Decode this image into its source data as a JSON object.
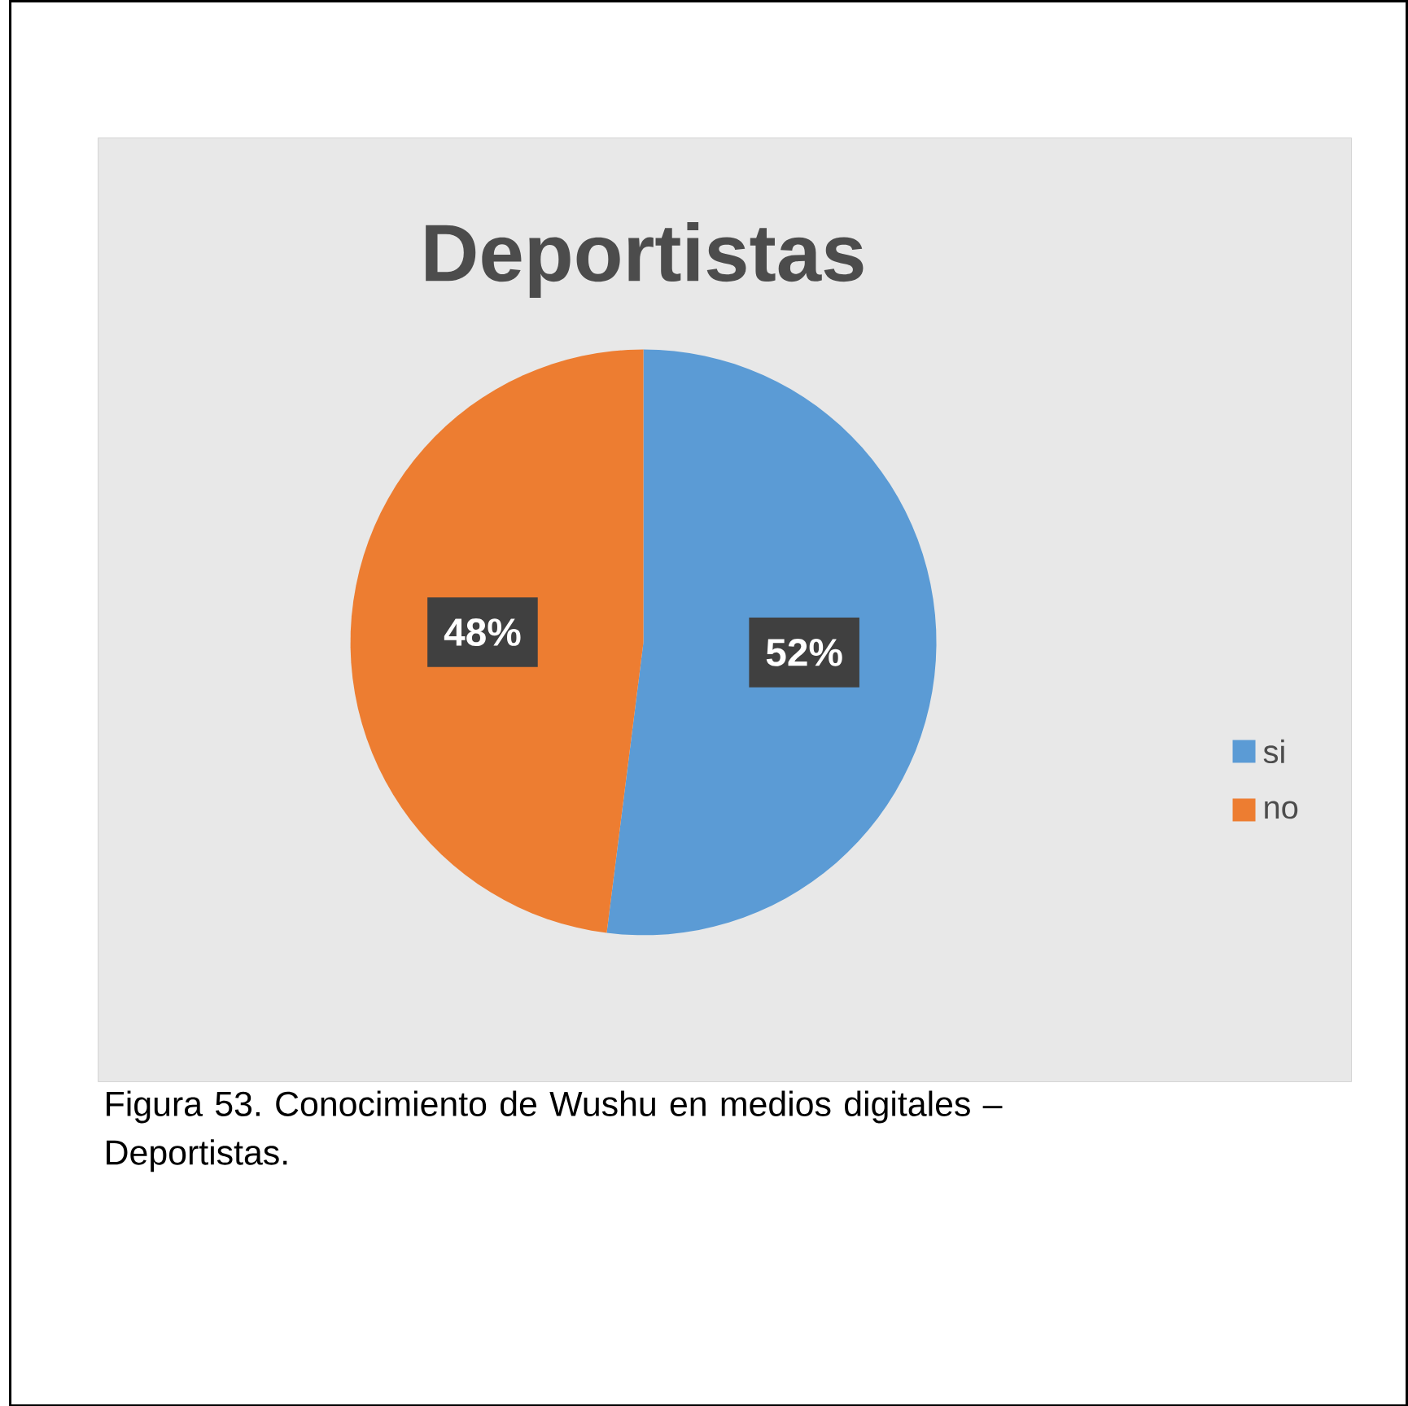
{
  "chart_data": {
    "type": "pie",
    "title": "Deportistas",
    "categories": [
      "si",
      "no"
    ],
    "values": [
      52,
      48
    ],
    "colors": [
      "#5b9bd5",
      "#ed7d31"
    ],
    "value_labels": [
      "52%",
      "48%"
    ],
    "legend": "right",
    "annotations": [
      "Figura 53. Conocimiento de Wushu en medios digitales – Deportistas."
    ]
  }
}
